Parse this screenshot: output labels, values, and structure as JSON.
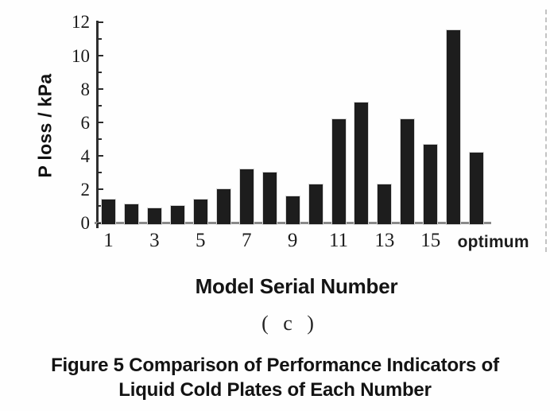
{
  "chart_data": {
    "type": "bar",
    "title": "",
    "categories": [
      "1",
      "2",
      "3",
      "4",
      "5",
      "6",
      "7",
      "8",
      "9",
      "10",
      "11",
      "12",
      "13",
      "14",
      "15",
      "16",
      "optimum"
    ],
    "values": [
      1.4,
      1.1,
      0.9,
      1.0,
      1.4,
      2.0,
      3.2,
      3.0,
      1.6,
      2.3,
      6.2,
      7.2,
      2.3,
      6.2,
      4.7,
      11.5,
      4.2
    ],
    "xlabel": "Model Serial Number",
    "ylabel": "P loss / kPa",
    "ylim": [
      0,
      12
    ],
    "ytick_step": 2,
    "minor_tick_step": 1,
    "ytick_labels": [
      "0",
      "2",
      "4",
      "6",
      "8",
      "10",
      "12"
    ],
    "xtick_labels": [
      "1",
      "3",
      "5",
      "7",
      "9",
      "11",
      "13",
      "15",
      "optimum"
    ],
    "grid": false,
    "legend": "none",
    "bar_color": "#1d1d1d"
  },
  "subplot_label": "( c )",
  "caption": {
    "line1": "Figure 5 Comparison of Performance Indicators of",
    "line2": "Liquid Cold Plates of Each Number"
  }
}
